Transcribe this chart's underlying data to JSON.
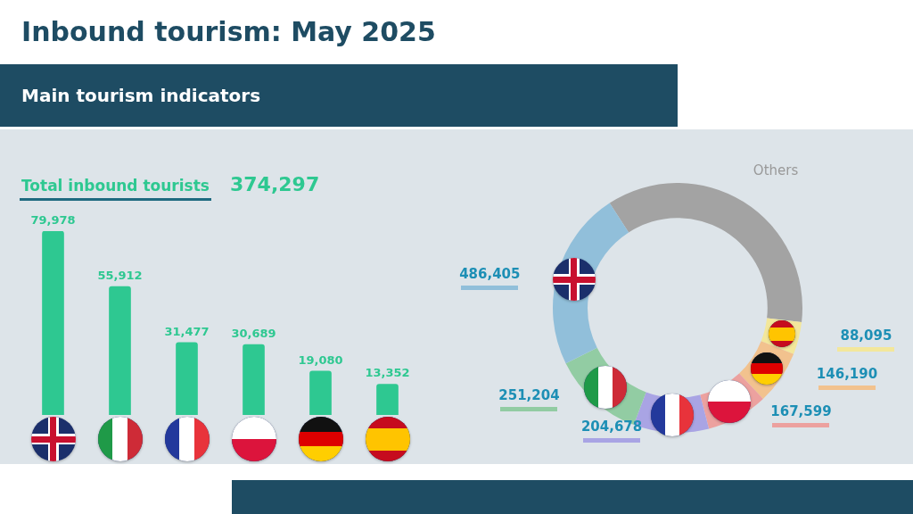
{
  "chart_data": [
    {
      "type": "bar",
      "title": "Inbound tourism: May 2025",
      "subtitle": "Main tourism indicators",
      "annotations": [
        "Total inbound tourists",
        "374,297"
      ],
      "categories": [
        null,
        null,
        null,
        null,
        null,
        null
      ],
      "values": [
        79978,
        55912,
        31477,
        30689,
        19080,
        13352
      ],
      "color": "#2ec891",
      "value_labels": [
        "79,978",
        "55,912",
        "31,477",
        "30,689",
        "19,080",
        "13,352"
      ],
      "tick_labels": false
    },
    {
      "type": "donut",
      "categories": [
        "Others",
        null,
        null,
        null,
        null,
        null,
        null
      ],
      "values": [
        756000,
        88095,
        146190,
        167599,
        204678,
        251204,
        486405
      ],
      "colors": [
        "#a3a3a3",
        "#f3e79b",
        "#f2c28e",
        "#eca19f",
        "#a9a4e4",
        "#92cca3",
        "#91bfda"
      ],
      "value_labels": [
        null,
        "88,095",
        "146,190",
        "167,599",
        "204,678",
        "251,204",
        "486,405"
      ]
    }
  ]
}
